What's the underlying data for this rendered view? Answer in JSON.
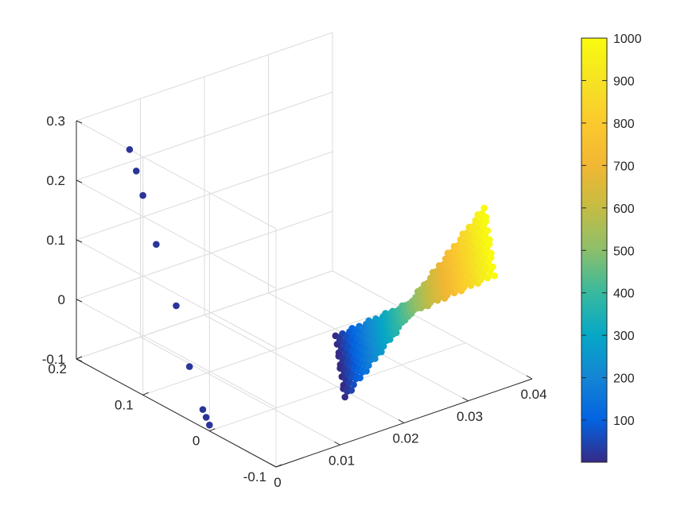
{
  "chart_data": {
    "type": "scatter3d",
    "title": "",
    "xlabel": "",
    "ylabel": "",
    "zlabel": "",
    "grid": true,
    "box": false,
    "xlim": [
      0,
      0.04
    ],
    "ylim": [
      -0.1,
      0.2
    ],
    "zlim": [
      -0.1,
      0.3
    ],
    "x_ticks": [
      "0",
      "0.01",
      "0.02",
      "0.03",
      "0.04"
    ],
    "y_ticks": [
      "-0.1",
      "0",
      "0.1",
      "0.2"
    ],
    "z_ticks": [
      "-0.1",
      "0",
      "0.1",
      "0.2",
      "0.3"
    ],
    "colormap": "parula",
    "colorbar": {
      "location": "right",
      "limits": [
        1,
        1000
      ],
      "ticks": [
        "100",
        "200",
        "300",
        "400",
        "500",
        "600",
        "700",
        "800",
        "900",
        "1000"
      ]
    },
    "vertical_line_points": {
      "color_value": 20,
      "x": [
        0,
        0,
        0,
        0,
        0,
        0,
        0,
        0,
        0
      ],
      "y": [
        0.0,
        0.005,
        0.01,
        0.03,
        0.05,
        0.08,
        0.1,
        0.11,
        0.12
      ],
      "z": [
        -0.09,
        -0.08,
        -0.07,
        -0.01,
        0.08,
        0.165,
        0.235,
        0.27,
        0.3
      ]
    },
    "bowtie_surface": {
      "description_free": true,
      "x_range": [
        0.005,
        0.04
      ],
      "y_range": [
        -0.02,
        0.02
      ],
      "z_range": [
        -0.05,
        0.05
      ],
      "color_range": [
        1,
        1000
      ]
    }
  }
}
